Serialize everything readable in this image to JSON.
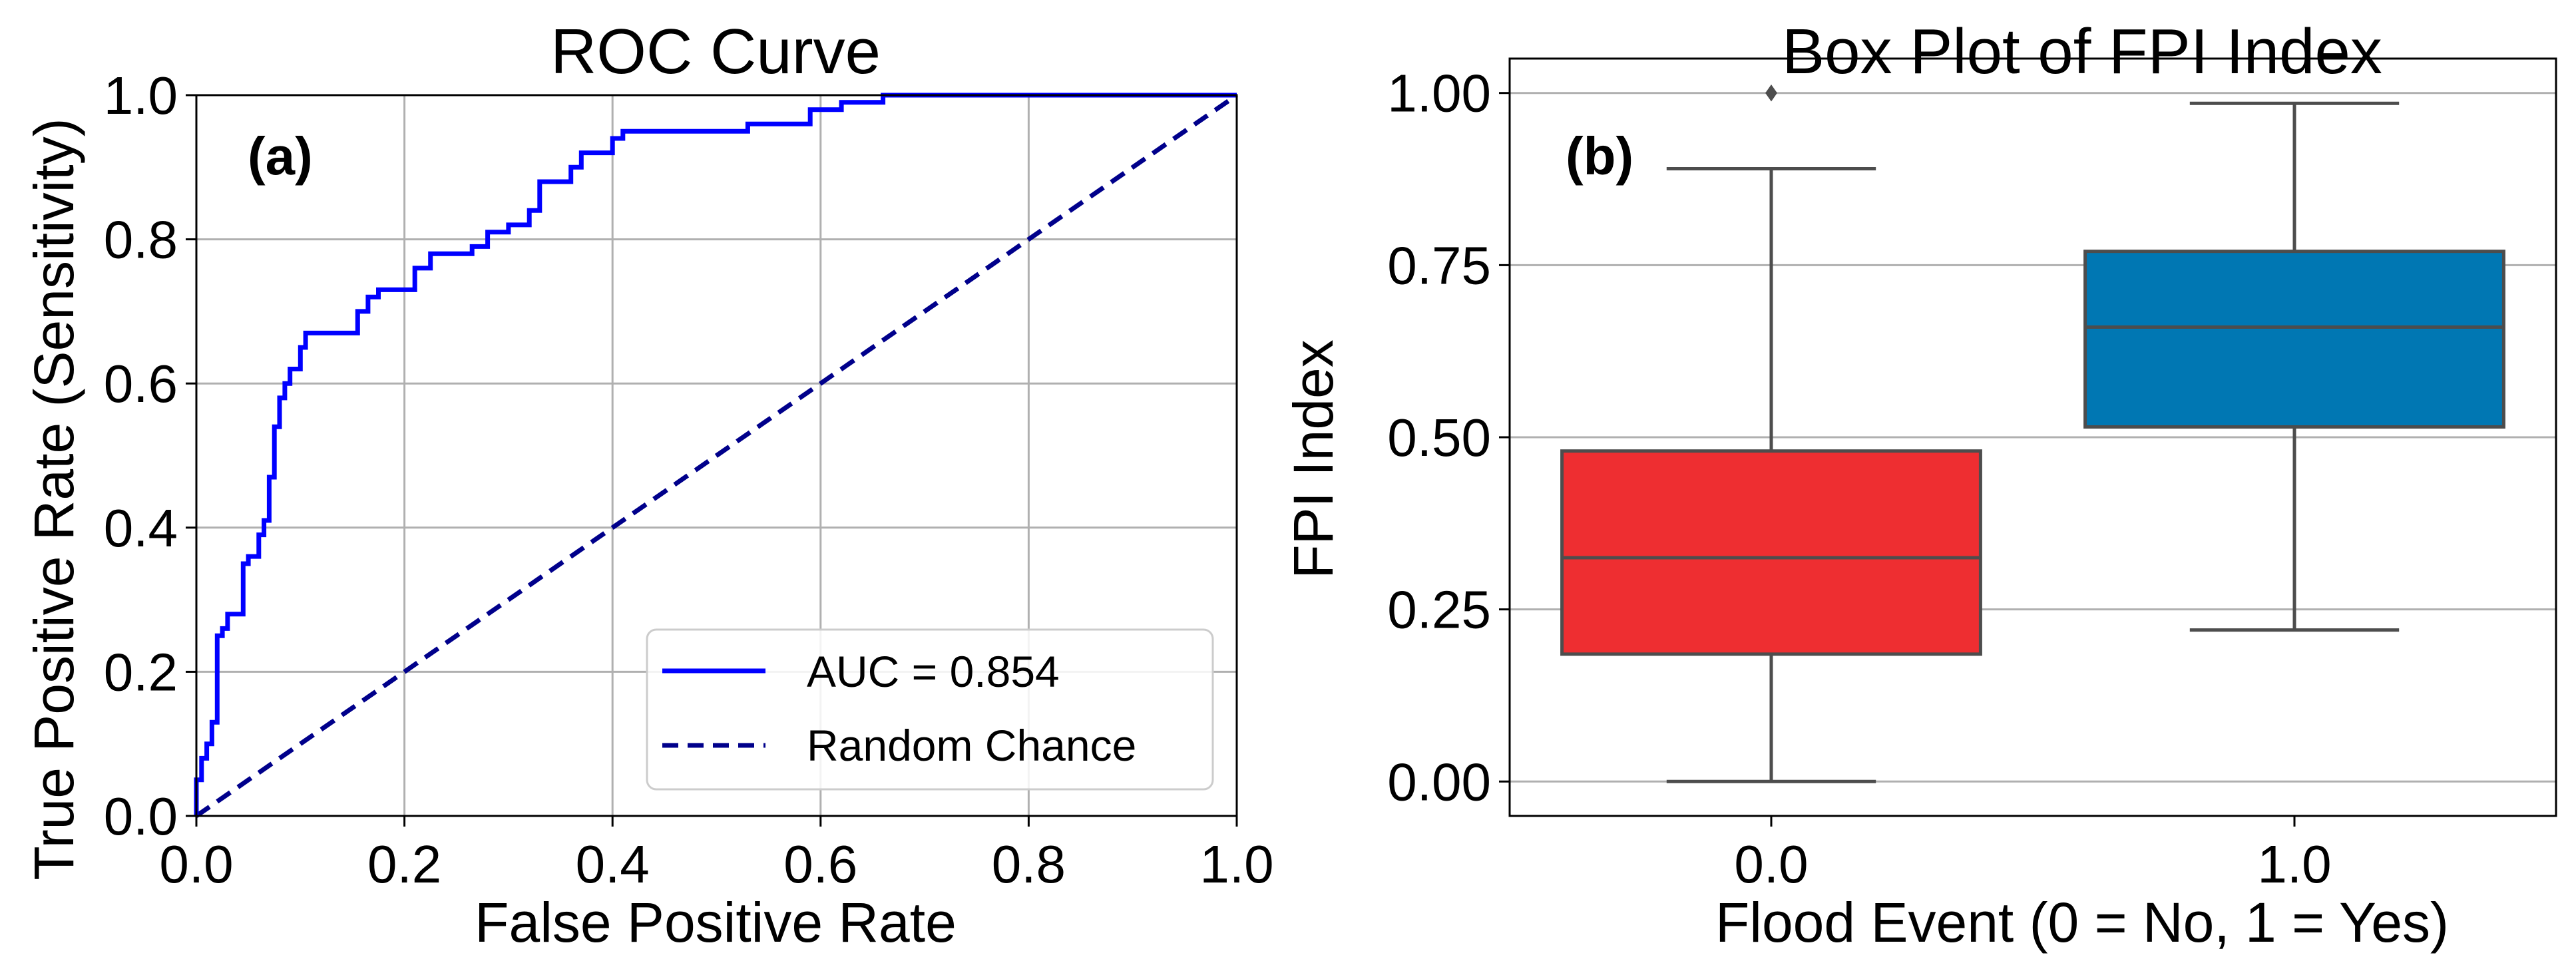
{
  "chart_data": [
    {
      "type": "line",
      "panel_label": "(a)",
      "title": "ROC Curve",
      "xlabel": "False Positive Rate",
      "ylabel": "True Positive Rate (Sensitivity)",
      "xlim": [
        0,
        1
      ],
      "ylim": [
        0,
        1
      ],
      "xticks": [
        "0.0",
        "0.2",
        "0.4",
        "0.6",
        "0.8",
        "1.0"
      ],
      "yticks": [
        "0.0",
        "0.2",
        "0.4",
        "0.6",
        "0.8",
        "1.0"
      ],
      "grid": true,
      "legend_position": "lower-right",
      "series": [
        {
          "name": "AUC = 0.854",
          "style": "solid",
          "color": "#0000ff",
          "x": [
            0,
            0,
            0.005,
            0.005,
            0.01,
            0.01,
            0.015,
            0.015,
            0.02,
            0.02,
            0.025,
            0.025,
            0.03,
            0.03,
            0.045,
            0.045,
            0.05,
            0.05,
            0.06,
            0.06,
            0.065,
            0.065,
            0.07,
            0.07,
            0.075,
            0.075,
            0.08,
            0.08,
            0.085,
            0.085,
            0.09,
            0.09,
            0.1,
            0.1,
            0.105,
            0.105,
            0.115,
            0.115,
            0.155,
            0.155,
            0.165,
            0.165,
            0.175,
            0.175,
            0.21,
            0.21,
            0.225,
            0.225,
            0.265,
            0.265,
            0.28,
            0.28,
            0.3,
            0.3,
            0.32,
            0.32,
            0.33,
            0.33,
            0.36,
            0.36,
            0.37,
            0.37,
            0.4,
            0.4,
            0.41,
            0.41,
            0.45,
            0.45,
            0.53,
            0.53,
            0.59,
            0.59,
            0.62,
            0.62,
            0.66,
            0.66,
            1
          ],
          "y": [
            0,
            0.05,
            0.05,
            0.08,
            0.08,
            0.1,
            0.1,
            0.13,
            0.13,
            0.25,
            0.25,
            0.26,
            0.26,
            0.28,
            0.28,
            0.35,
            0.35,
            0.36,
            0.36,
            0.39,
            0.39,
            0.41,
            0.41,
            0.47,
            0.47,
            0.54,
            0.54,
            0.58,
            0.58,
            0.6,
            0.6,
            0.62,
            0.62,
            0.65,
            0.65,
            0.67,
            0.67,
            0.67,
            0.67,
            0.7,
            0.7,
            0.72,
            0.72,
            0.73,
            0.73,
            0.76,
            0.76,
            0.78,
            0.78,
            0.79,
            0.79,
            0.81,
            0.81,
            0.82,
            0.82,
            0.84,
            0.84,
            0.88,
            0.88,
            0.9,
            0.9,
            0.92,
            0.92,
            0.94,
            0.94,
            0.95,
            0.95,
            0.95,
            0.95,
            0.96,
            0.96,
            0.98,
            0.98,
            0.99,
            0.99,
            1,
            1
          ]
        },
        {
          "name": "Random Chance",
          "style": "dashed",
          "color": "#00008b",
          "x": [
            0,
            1
          ],
          "y": [
            0,
            1
          ]
        }
      ]
    },
    {
      "type": "box",
      "panel_label": "(b)",
      "title": "Box Plot of FPI Index",
      "xlabel": "Flood Event (0 = No, 1 = Yes)",
      "ylabel": "FPI Index",
      "ylim": [
        -0.05,
        1.05
      ],
      "yticks": [
        "0.00",
        "0.25",
        "0.50",
        "0.75",
        "1.00"
      ],
      "grid": true,
      "categories": [
        "0.0",
        "1.0"
      ],
      "boxes": [
        {
          "category": "0.0",
          "color": "#ee2e31",
          "min": 0.0,
          "q1": 0.185,
          "median": 0.325,
          "q3": 0.48,
          "max": 0.89,
          "outliers": [
            1.0
          ]
        },
        {
          "category": "1.0",
          "color": "#0077b3",
          "min": 0.22,
          "q1": 0.515,
          "median": 0.66,
          "q3": 0.77,
          "max": 0.985,
          "outliers": []
        }
      ]
    }
  ]
}
